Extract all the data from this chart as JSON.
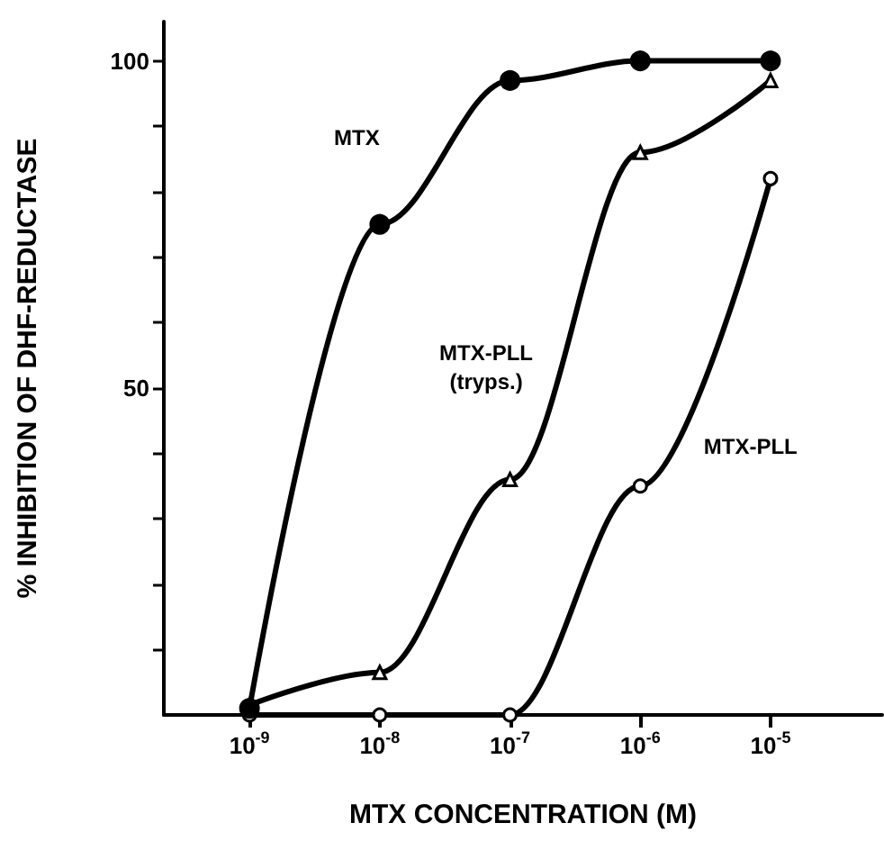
{
  "chart_data": {
    "type": "line",
    "xlabel": "MTX CONCENTRATION (M)",
    "ylabel": "% INHIBITION OF DHF-REDUCTASE",
    "x": [
      1e-09,
      1e-08,
      1e-07,
      1e-06,
      1e-05
    ],
    "series": [
      {
        "name": "MTX",
        "color": "#000000",
        "marker": "circle",
        "values": [
          1,
          75,
          97,
          100,
          100
        ]
      },
      {
        "name": "MTX-PLL\n(tryps.)",
        "color": "#000000",
        "marker": "triangle",
        "values": [
          1.5,
          6.5,
          36,
          86,
          97
        ]
      },
      {
        "name": "MTX-PLL",
        "color": "#000000",
        "marker": "circle",
        "values": [
          0,
          0,
          0,
          35,
          82
        ]
      }
    ],
    "log": "x",
    "xlim": [
      2.2e-10,
      7.2e-05
    ],
    "xticks": [
      {
        "value": 1e-09,
        "label": "10$^{-9}$"
      },
      {
        "value": 1e-08,
        "label": "10$^{-8}$"
      },
      {
        "value": 1e-07,
        "label": "10$^{-7}$"
      },
      {
        "value": 1e-06,
        "label": "10$^{-6}$"
      },
      {
        "value": 1e-05,
        "label": "10$^{-5}$"
      }
    ],
    "ylim": [
      0,
      106
    ],
    "yticks": [
      {
        "value": 10,
        "label": null
      },
      {
        "value": 20,
        "label": null
      },
      {
        "value": 30,
        "label": null
      },
      {
        "value": 40,
        "label": null
      },
      50,
      {
        "value": 60,
        "label": null
      },
      {
        "value": 70,
        "label": null
      },
      {
        "value": 80,
        "label": null
      },
      {
        "value": 90,
        "label": null
      },
      100
    ],
    "grid": false,
    "legend": false,
    "line_style": "solid"
  }
}
